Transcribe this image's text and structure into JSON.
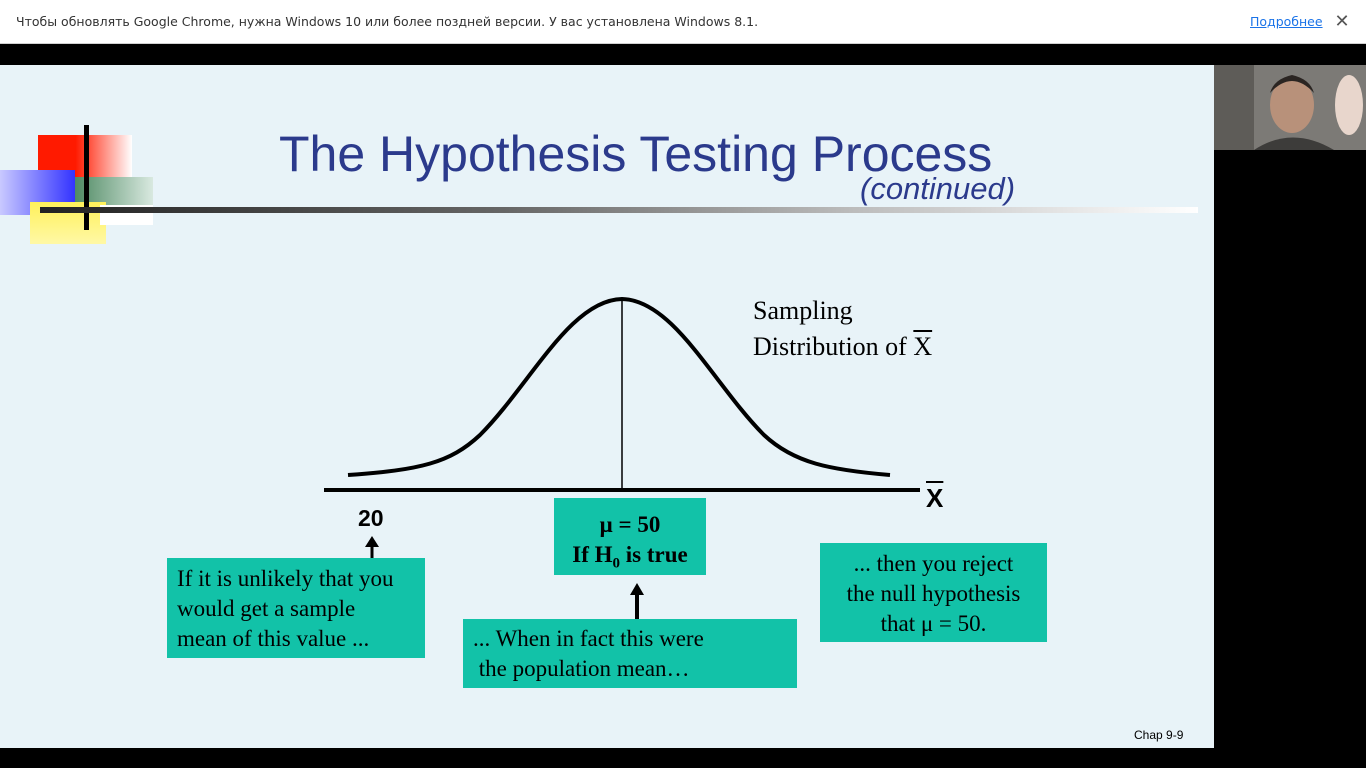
{
  "infobar": {
    "message": "Чтобы обновлять Google Chrome, нужна Windows 10 или более поздней версии. У вас установлена Windows 8.1.",
    "link": "Подробнее",
    "close_glyph": "✕"
  },
  "slide": {
    "title": "The Hypothesis Testing Process",
    "subtitle": "(continued)",
    "sampling_line1": "Sampling",
    "sampling_line2_prefix": "Distribution of ",
    "sampling_line2_symbol": "X",
    "x_axis_symbol": "X",
    "value_20": "20",
    "mu_box": {
      "line1": "μ = 50",
      "line2_prefix": "If H",
      "line2_sub": "0",
      "line2_suffix": " is true"
    },
    "left_box": [
      "If it is unlikely that you",
      "would get a sample",
      "mean of this value ..."
    ],
    "mid_box": [
      "... When in fact this were",
      " the population mean…"
    ],
    "right_box": [
      "... then you reject",
      "the null hypothesis",
      "that μ = 50."
    ],
    "footer": "Chap 9-9"
  },
  "colors": {
    "slide_bg": "#e8f3f8",
    "title": "#2b3a8c",
    "box_fill": "#12c2a8"
  },
  "webcam": {
    "icon": "person-video-icon"
  }
}
